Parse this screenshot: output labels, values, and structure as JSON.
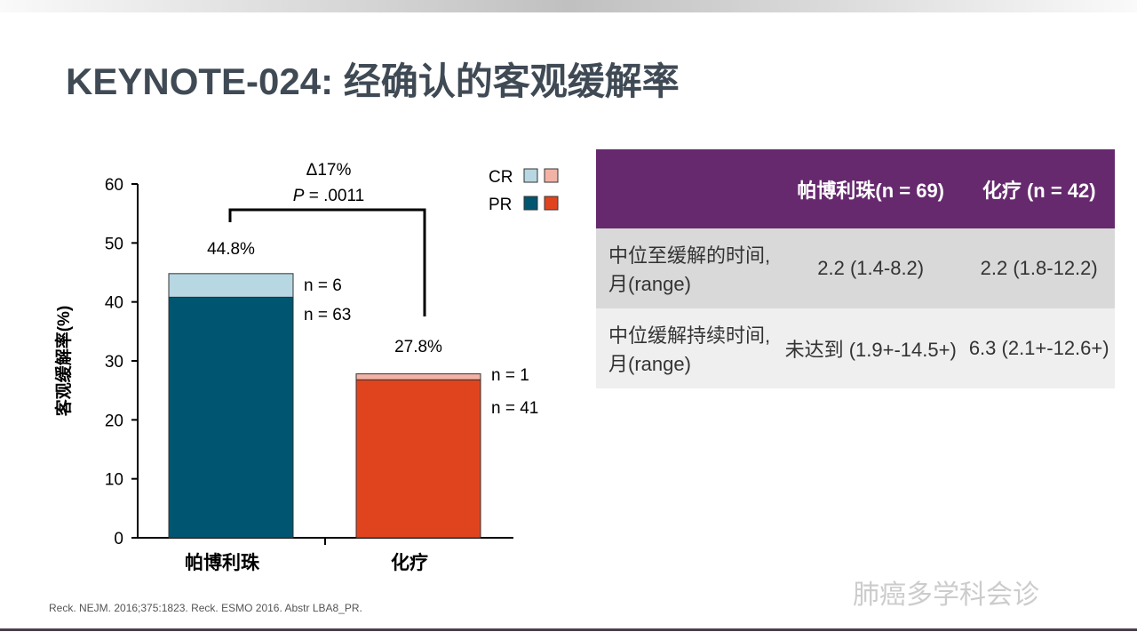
{
  "title": "KEYNOTE-024: 经确认的客观缓解率",
  "chart_data": {
    "type": "bar",
    "stacked": true,
    "categories": [
      "帕博利珠",
      "化疗"
    ],
    "ylabel": "客观缓解率(%)",
    "ylim": [
      0,
      60
    ],
    "yticks": [
      0,
      10,
      20,
      30,
      40,
      50,
      60
    ],
    "series": [
      {
        "name": "PR",
        "values": [
          40.8,
          26.8
        ],
        "colors": [
          "#005670",
          "#e0441f"
        ],
        "n_labels": [
          "n = 63",
          "n = 41"
        ]
      },
      {
        "name": "CR",
        "values": [
          4.0,
          1.0
        ],
        "colors": [
          "#b7d7e2",
          "#f2b3a6"
        ],
        "n_labels": [
          "n = 6",
          "n = 1"
        ]
      }
    ],
    "totals": [
      "44.8%",
      "27.8%"
    ],
    "comparison": {
      "delta": "Δ17%",
      "p": ".0011",
      "p_label": "P"
    },
    "legend": [
      "CR",
      "PR"
    ],
    "legend_position": "top-right"
  },
  "table": {
    "headers": [
      "",
      "帕博利珠(n = 69)",
      "化疗 (n = 42)"
    ],
    "rows": [
      [
        "中位至缓解的时间, 月(range)",
        "2.2 (1.4-8.2)",
        "2.2 (1.8-12.2)"
      ],
      [
        "中位缓解持续时间, 月(range)",
        "未达到 (1.9+-14.5+)",
        "6.3 (2.1+-12.6+)"
      ]
    ]
  },
  "reference": "Reck. NEJM. 2016;375:1823. Reck. ESMO 2016. Abstr LBA8_PR.",
  "watermark": "肺癌多学科会诊"
}
